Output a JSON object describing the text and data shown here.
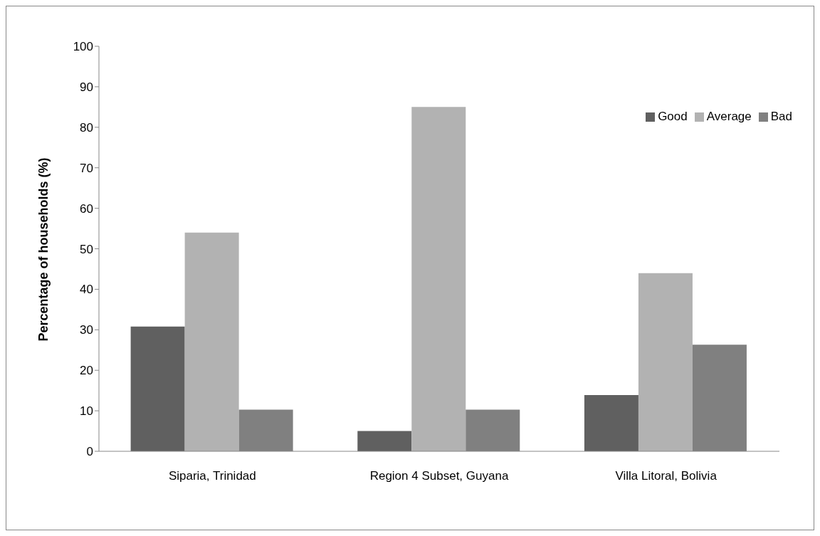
{
  "chart_data": {
    "type": "bar",
    "ylabel": "Percentage of households (%)",
    "categories": [
      "Siparia, Trinidad",
      "Region 4 Subset, Guyana",
      "Villa Litoral, Bolivia"
    ],
    "series": [
      {
        "name": "Good",
        "color": "#606060",
        "values": [
          30.8,
          5,
          13.9
        ]
      },
      {
        "name": "Average",
        "color": "#b2b2b2",
        "values": [
          54,
          85,
          44
        ]
      },
      {
        "name": "Bad",
        "color": "#808080",
        "values": [
          10.3,
          10.3,
          26.3
        ]
      }
    ],
    "ylim": [
      0,
      100
    ],
    "yticks": [
      0,
      10,
      20,
      30,
      40,
      50,
      60,
      70,
      80,
      90,
      100
    ],
    "grid": false,
    "legend": "top right"
  }
}
